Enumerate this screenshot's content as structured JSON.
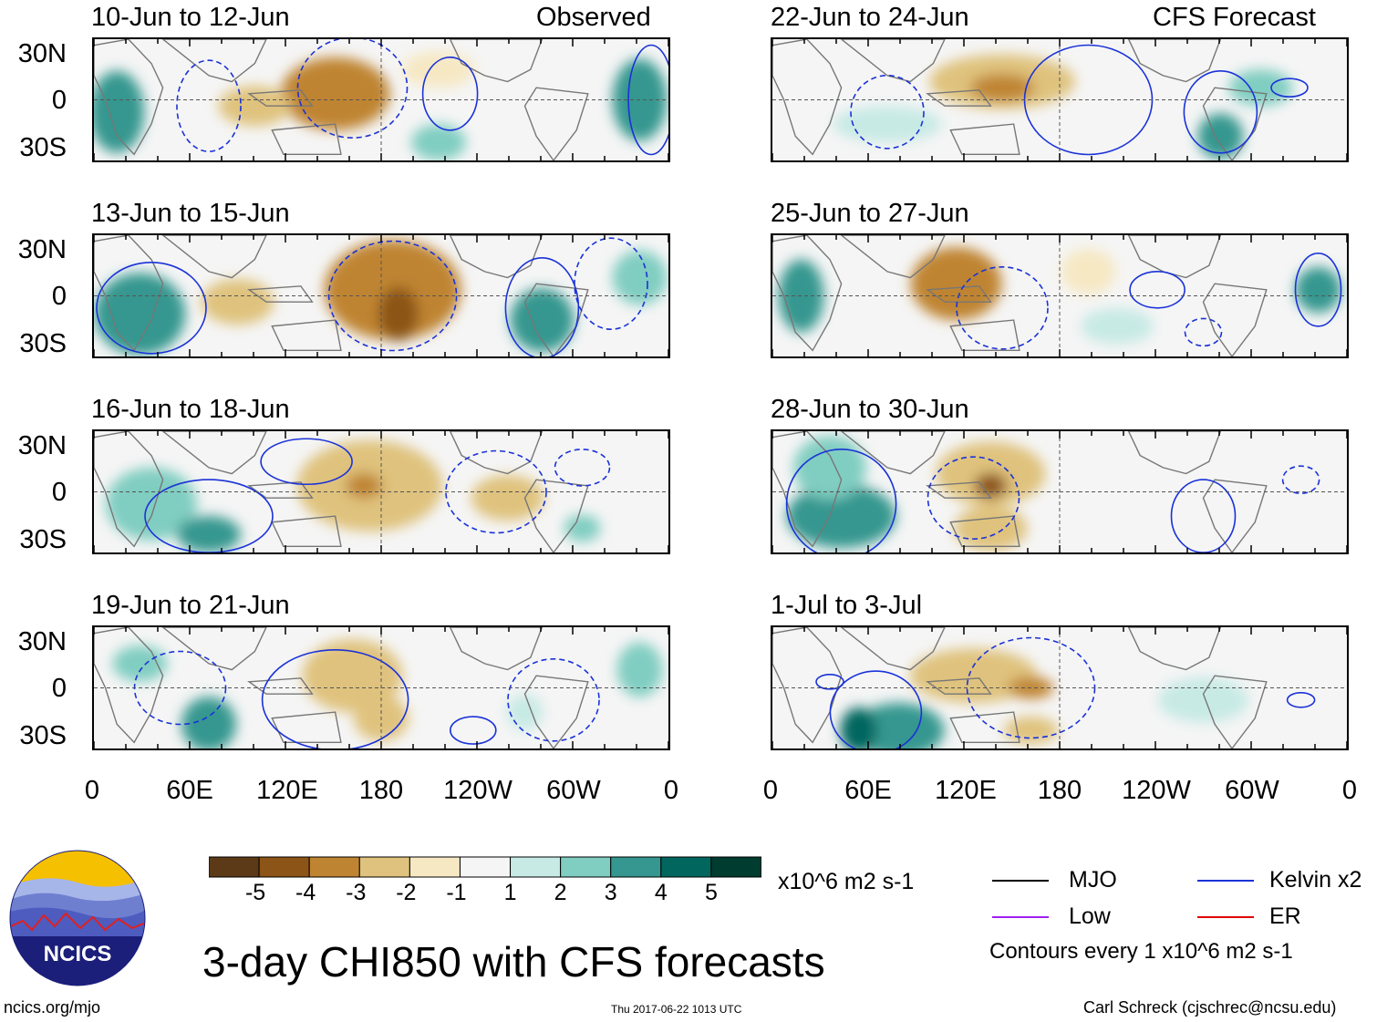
{
  "chart_data": {
    "type": "heatmap",
    "title": "3-day CHI850 with CFS forecasts",
    "variable": "CHI850",
    "units": "x10^6 m2 s-1",
    "x_ticks": [
      "0",
      "60E",
      "120E",
      "180",
      "120W",
      "60W",
      "0"
    ],
    "y_ticks": [
      "30N",
      "0",
      "30S"
    ],
    "colorbar": {
      "ticks": [
        "-5",
        "-4",
        "-3",
        "-2",
        "-1",
        "1",
        "2",
        "3",
        "4",
        "5"
      ],
      "colors": [
        "#5c3a17",
        "#8c5417",
        "#bf8431",
        "#dfc27d",
        "#f6e8c3",
        "#f5f5f5",
        "#c7eae5",
        "#80cdc1",
        "#35978f",
        "#01665e",
        "#003c30"
      ]
    },
    "columns": [
      {
        "header": "Observed",
        "panels": [
          "10-Jun to 12-Jun",
          "13-Jun to 15-Jun",
          "16-Jun to 18-Jun",
          "19-Jun to 21-Jun"
        ]
      },
      {
        "header": "CFS Forecast",
        "panels": [
          "22-Jun to 24-Jun",
          "25-Jun to 27-Jun",
          "28-Jun to 30-Jun",
          "1-Jul to 3-Jul"
        ]
      }
    ],
    "contour_legend": [
      {
        "name": "MJO",
        "color": "#000000"
      },
      {
        "name": "Kelvin x2",
        "color": "#1a32d8"
      },
      {
        "name": "Low",
        "color": "#a020f0"
      },
      {
        "name": "ER",
        "color": "#e00000"
      }
    ],
    "contour_note": "Contours every 1 x10^6 m2 s-1"
  },
  "footer": {
    "logo_text": "NCICS",
    "site": "ncics.org/mjo",
    "timestamp": "Thu 2017-06-22 1013 UTC",
    "credit": "Carl Schreck (cjschrec@ncsu.edu)"
  }
}
